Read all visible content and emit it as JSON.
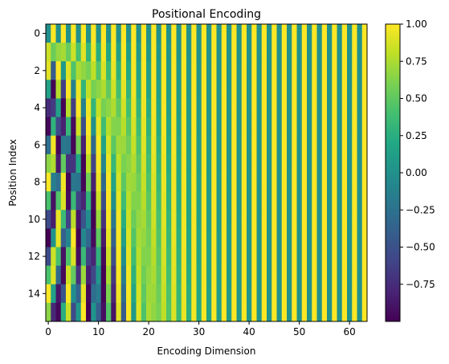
{
  "chart_data": {
    "type": "heatmap",
    "title": "Positional Encoding",
    "xlabel": "Encoding Dimension",
    "ylabel": "Position Index",
    "n_positions": 16,
    "n_dims": 64,
    "d_model": 64,
    "encoding_formula": "PE(pos,2i)=sin(pos/10000^(2i/64)); PE(pos,2i+1)=cos(pos/10000^(2i/64))",
    "xlim": [
      -0.5,
      63.5
    ],
    "ylim": [
      15.5,
      -0.5
    ],
    "x_ticks": [
      0,
      10,
      20,
      30,
      40,
      50,
      60
    ],
    "x_tick_labels": [
      "0",
      "10",
      "20",
      "30",
      "40",
      "50",
      "60"
    ],
    "y_ticks": [
      0,
      2,
      4,
      6,
      8,
      10,
      12,
      14
    ],
    "y_tick_labels": [
      "0",
      "2",
      "4",
      "6",
      "8",
      "10",
      "12",
      "14"
    ],
    "colormap": "viridis",
    "vmin": -1.0,
    "vmax": 1.0,
    "colorbar_ticks": [
      1.0,
      0.75,
      0.5,
      0.25,
      0.0,
      -0.25,
      -0.5,
      -0.75
    ],
    "colorbar_tick_labels": [
      "1.00",
      "0.75",
      "0.50",
      "0.25",
      "0.00",
      "−0.25",
      "−0.50",
      "−0.75"
    ],
    "grid": false
  }
}
